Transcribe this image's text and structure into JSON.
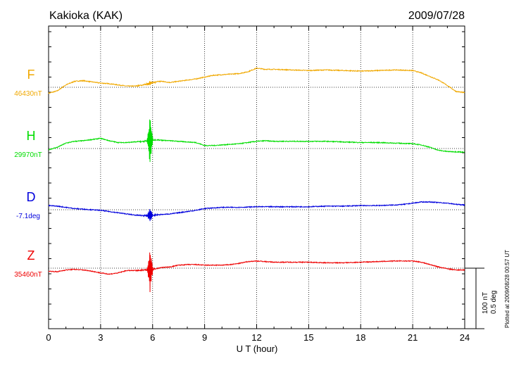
{
  "header": {
    "station": "Kakioka (KAK)",
    "date": "2009/07/28"
  },
  "footer_note": "Plotted at 2009/08/28 00:57 UT",
  "scale_labels": [
    "100 nT",
    "0.5 deg"
  ],
  "chart_data": {
    "type": "line",
    "title": "Kakioka (KAK)",
    "date": "2009/07/28",
    "xlabel": "U T (hour)",
    "xlim": [
      0,
      24
    ],
    "xticks": [
      0,
      3,
      6,
      9,
      12,
      15,
      18,
      21,
      24
    ],
    "grid": "vertical dotted every 3 h; dotted baseline per component",
    "scale_bar": "100 nT / 0.5 deg",
    "series": [
      {
        "name": "F",
        "baseline_label": "46430nT",
        "color": "#f0a800",
        "offset_units": "nT relative to baseline (approx.)",
        "points": [
          [
            0,
            -10
          ],
          [
            0.5,
            -6
          ],
          [
            1,
            4
          ],
          [
            1.5,
            10
          ],
          [
            2,
            11
          ],
          [
            2.5,
            9
          ],
          [
            3,
            7
          ],
          [
            3.5,
            6
          ],
          [
            4,
            4
          ],
          [
            4.5,
            2
          ],
          [
            5,
            2
          ],
          [
            5.5,
            4
          ],
          [
            6,
            8
          ],
          [
            6.5,
            10
          ],
          [
            7,
            8
          ],
          [
            7.5,
            10
          ],
          [
            8,
            12
          ],
          [
            8.5,
            14
          ],
          [
            9,
            17
          ],
          [
            9.5,
            20
          ],
          [
            10,
            21
          ],
          [
            10.5,
            22
          ],
          [
            11,
            23
          ],
          [
            11.5,
            26
          ],
          [
            12,
            32
          ],
          [
            12.5,
            30
          ],
          [
            13,
            30
          ],
          [
            14,
            29
          ],
          [
            15,
            28
          ],
          [
            16,
            29
          ],
          [
            17,
            28
          ],
          [
            18,
            27
          ],
          [
            19,
            28
          ],
          [
            20,
            29
          ],
          [
            21,
            28
          ],
          [
            21.5,
            24
          ],
          [
            22,
            18
          ],
          [
            22.5,
            12
          ],
          [
            23,
            3
          ],
          [
            23.5,
            -7
          ],
          [
            24,
            -9
          ]
        ],
        "bursts": [
          {
            "hour": 5.85,
            "amplitude": 4
          }
        ]
      },
      {
        "name": "H",
        "baseline_label": "29970nT",
        "color": "#00dd00",
        "offset_units": "nT relative to baseline (approx.)",
        "points": [
          [
            0,
            -2
          ],
          [
            0.5,
            2
          ],
          [
            1,
            9
          ],
          [
            1.5,
            12
          ],
          [
            2,
            13
          ],
          [
            2.5,
            15
          ],
          [
            3,
            17
          ],
          [
            3.5,
            13
          ],
          [
            4,
            10
          ],
          [
            4.5,
            10
          ],
          [
            5,
            11
          ],
          [
            5.5,
            12
          ],
          [
            6,
            15
          ],
          [
            6.5,
            14
          ],
          [
            7,
            13
          ],
          [
            7.5,
            12
          ],
          [
            8,
            11
          ],
          [
            8.5,
            10
          ],
          [
            9,
            5
          ],
          [
            9.5,
            5
          ],
          [
            10,
            6
          ],
          [
            10.5,
            7
          ],
          [
            11,
            8
          ],
          [
            11.5,
            10
          ],
          [
            12,
            12
          ],
          [
            12.5,
            13
          ],
          [
            13,
            12
          ],
          [
            14,
            12
          ],
          [
            15,
            12
          ],
          [
            16,
            12
          ],
          [
            17,
            11
          ],
          [
            18,
            10
          ],
          [
            19,
            10
          ],
          [
            20,
            9
          ],
          [
            21,
            8
          ],
          [
            21.5,
            6
          ],
          [
            22,
            2
          ],
          [
            22.5,
            -3
          ],
          [
            23,
            -5
          ],
          [
            24,
            -6
          ]
        ],
        "bursts": [
          {
            "hour": 5.85,
            "amplitude": 40
          }
        ]
      },
      {
        "name": "D",
        "baseline_label": "-7.1deg",
        "color": "#0000dd",
        "offset_units": "relative to baseline (approx.)",
        "points": [
          [
            0,
            7
          ],
          [
            0.5,
            6
          ],
          [
            1,
            4
          ],
          [
            1.5,
            2
          ],
          [
            2,
            1
          ],
          [
            2.5,
            0
          ],
          [
            3,
            -1
          ],
          [
            3.5,
            -3
          ],
          [
            4,
            -5
          ],
          [
            4.5,
            -7
          ],
          [
            5,
            -9
          ],
          [
            5.5,
            -10
          ],
          [
            6,
            -9
          ],
          [
            6.5,
            -8
          ],
          [
            7,
            -7
          ],
          [
            7.5,
            -5
          ],
          [
            8,
            -3
          ],
          [
            8.5,
            -1
          ],
          [
            9,
            2
          ],
          [
            9.5,
            3
          ],
          [
            10,
            4
          ],
          [
            11,
            4
          ],
          [
            12,
            5
          ],
          [
            13,
            5
          ],
          [
            14,
            5
          ],
          [
            15,
            5
          ],
          [
            16,
            6
          ],
          [
            17,
            6
          ],
          [
            18,
            7
          ],
          [
            19,
            7
          ],
          [
            20,
            8
          ],
          [
            20.5,
            9
          ],
          [
            21,
            11
          ],
          [
            21.5,
            13
          ],
          [
            22,
            13
          ],
          [
            22.5,
            12
          ],
          [
            23,
            11
          ],
          [
            23.5,
            9
          ],
          [
            24,
            8
          ]
        ],
        "bursts": [
          {
            "hour": 5.85,
            "amplitude": 13
          }
        ]
      },
      {
        "name": "Z",
        "baseline_label": "35460nT",
        "color": "#ee0000",
        "offset_units": "nT relative to baseline (approx.)",
        "points": [
          [
            0,
            -5
          ],
          [
            0.5,
            -6
          ],
          [
            1,
            -3
          ],
          [
            1.5,
            -2
          ],
          [
            2,
            -3
          ],
          [
            2.5,
            -5
          ],
          [
            3,
            -8
          ],
          [
            3.5,
            -10
          ],
          [
            4,
            -8
          ],
          [
            4.5,
            -4
          ],
          [
            5,
            -4
          ],
          [
            5.5,
            -3
          ],
          [
            6,
            -2
          ],
          [
            6.5,
            1
          ],
          [
            7,
            2
          ],
          [
            7.5,
            5
          ],
          [
            8,
            6
          ],
          [
            8.5,
            6
          ],
          [
            9,
            5
          ],
          [
            9.5,
            5
          ],
          [
            10,
            5
          ],
          [
            10.5,
            6
          ],
          [
            11,
            8
          ],
          [
            11.5,
            11
          ],
          [
            12,
            12
          ],
          [
            12.5,
            11
          ],
          [
            13,
            10
          ],
          [
            14,
            10
          ],
          [
            15,
            10
          ],
          [
            16,
            9
          ],
          [
            17,
            9
          ],
          [
            18,
            10
          ],
          [
            19,
            11
          ],
          [
            20,
            12
          ],
          [
            21,
            12
          ],
          [
            21.5,
            10
          ],
          [
            22,
            6
          ],
          [
            22.5,
            2
          ],
          [
            23,
            -1
          ],
          [
            23.5,
            -3
          ],
          [
            24,
            -3
          ]
        ],
        "bursts": [
          {
            "hour": 5.85,
            "amplitude": 38
          }
        ]
      }
    ]
  }
}
